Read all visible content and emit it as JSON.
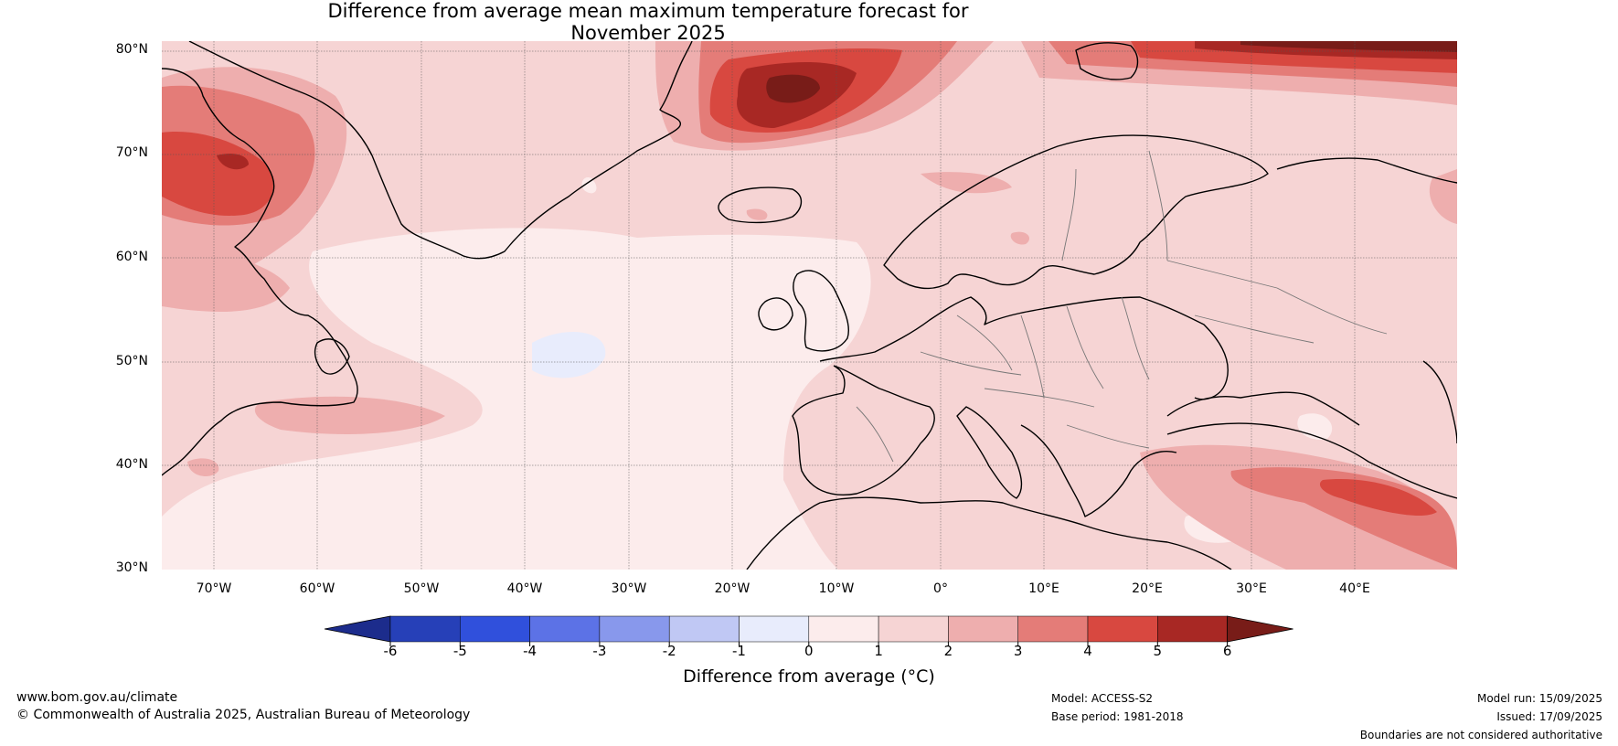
{
  "title": {
    "line1": "Difference from average mean maximum temperature forecast for",
    "line2": "November 2025"
  },
  "map": {
    "latitude_labels": [
      "80°N",
      "70°N",
      "60°N",
      "50°N",
      "40°N",
      "30°N"
    ],
    "longitude_labels": [
      "70°W",
      "60°W",
      "50°W",
      "40°W",
      "30°W",
      "20°W",
      "10°W",
      "0°",
      "10°E",
      "20°E",
      "30°E",
      "40°E"
    ]
  },
  "colorbar": {
    "ticks": [
      "-6",
      "-5",
      "-4",
      "-3",
      "-2",
      "-1",
      "0",
      "1",
      "2",
      "3",
      "4",
      "5",
      "6"
    ],
    "colors": [
      "#1c2c8c",
      "#2640b8",
      "#3050dc",
      "#5c72e6",
      "#8898ec",
      "#c0c8f4",
      "#e8ecfc",
      "#fcecec",
      "#f6d4d4",
      "#eeaeae",
      "#e47c78",
      "#d84840",
      "#a82824",
      "#781c18"
    ],
    "label": "Difference from average (°C)"
  },
  "footer": {
    "website": "www.bom.gov.au/climate",
    "copyright": "© Commonwealth of Australia 2025, Australian Bureau of Meteorology",
    "model": "Model: ACCESS-S2",
    "base_period": "Base period: 1981-2018",
    "model_run": "Model run: 15/09/2025",
    "issued": "Issued: 17/09/2025",
    "disclaimer": "Boundaries are not considered authoritative"
  }
}
